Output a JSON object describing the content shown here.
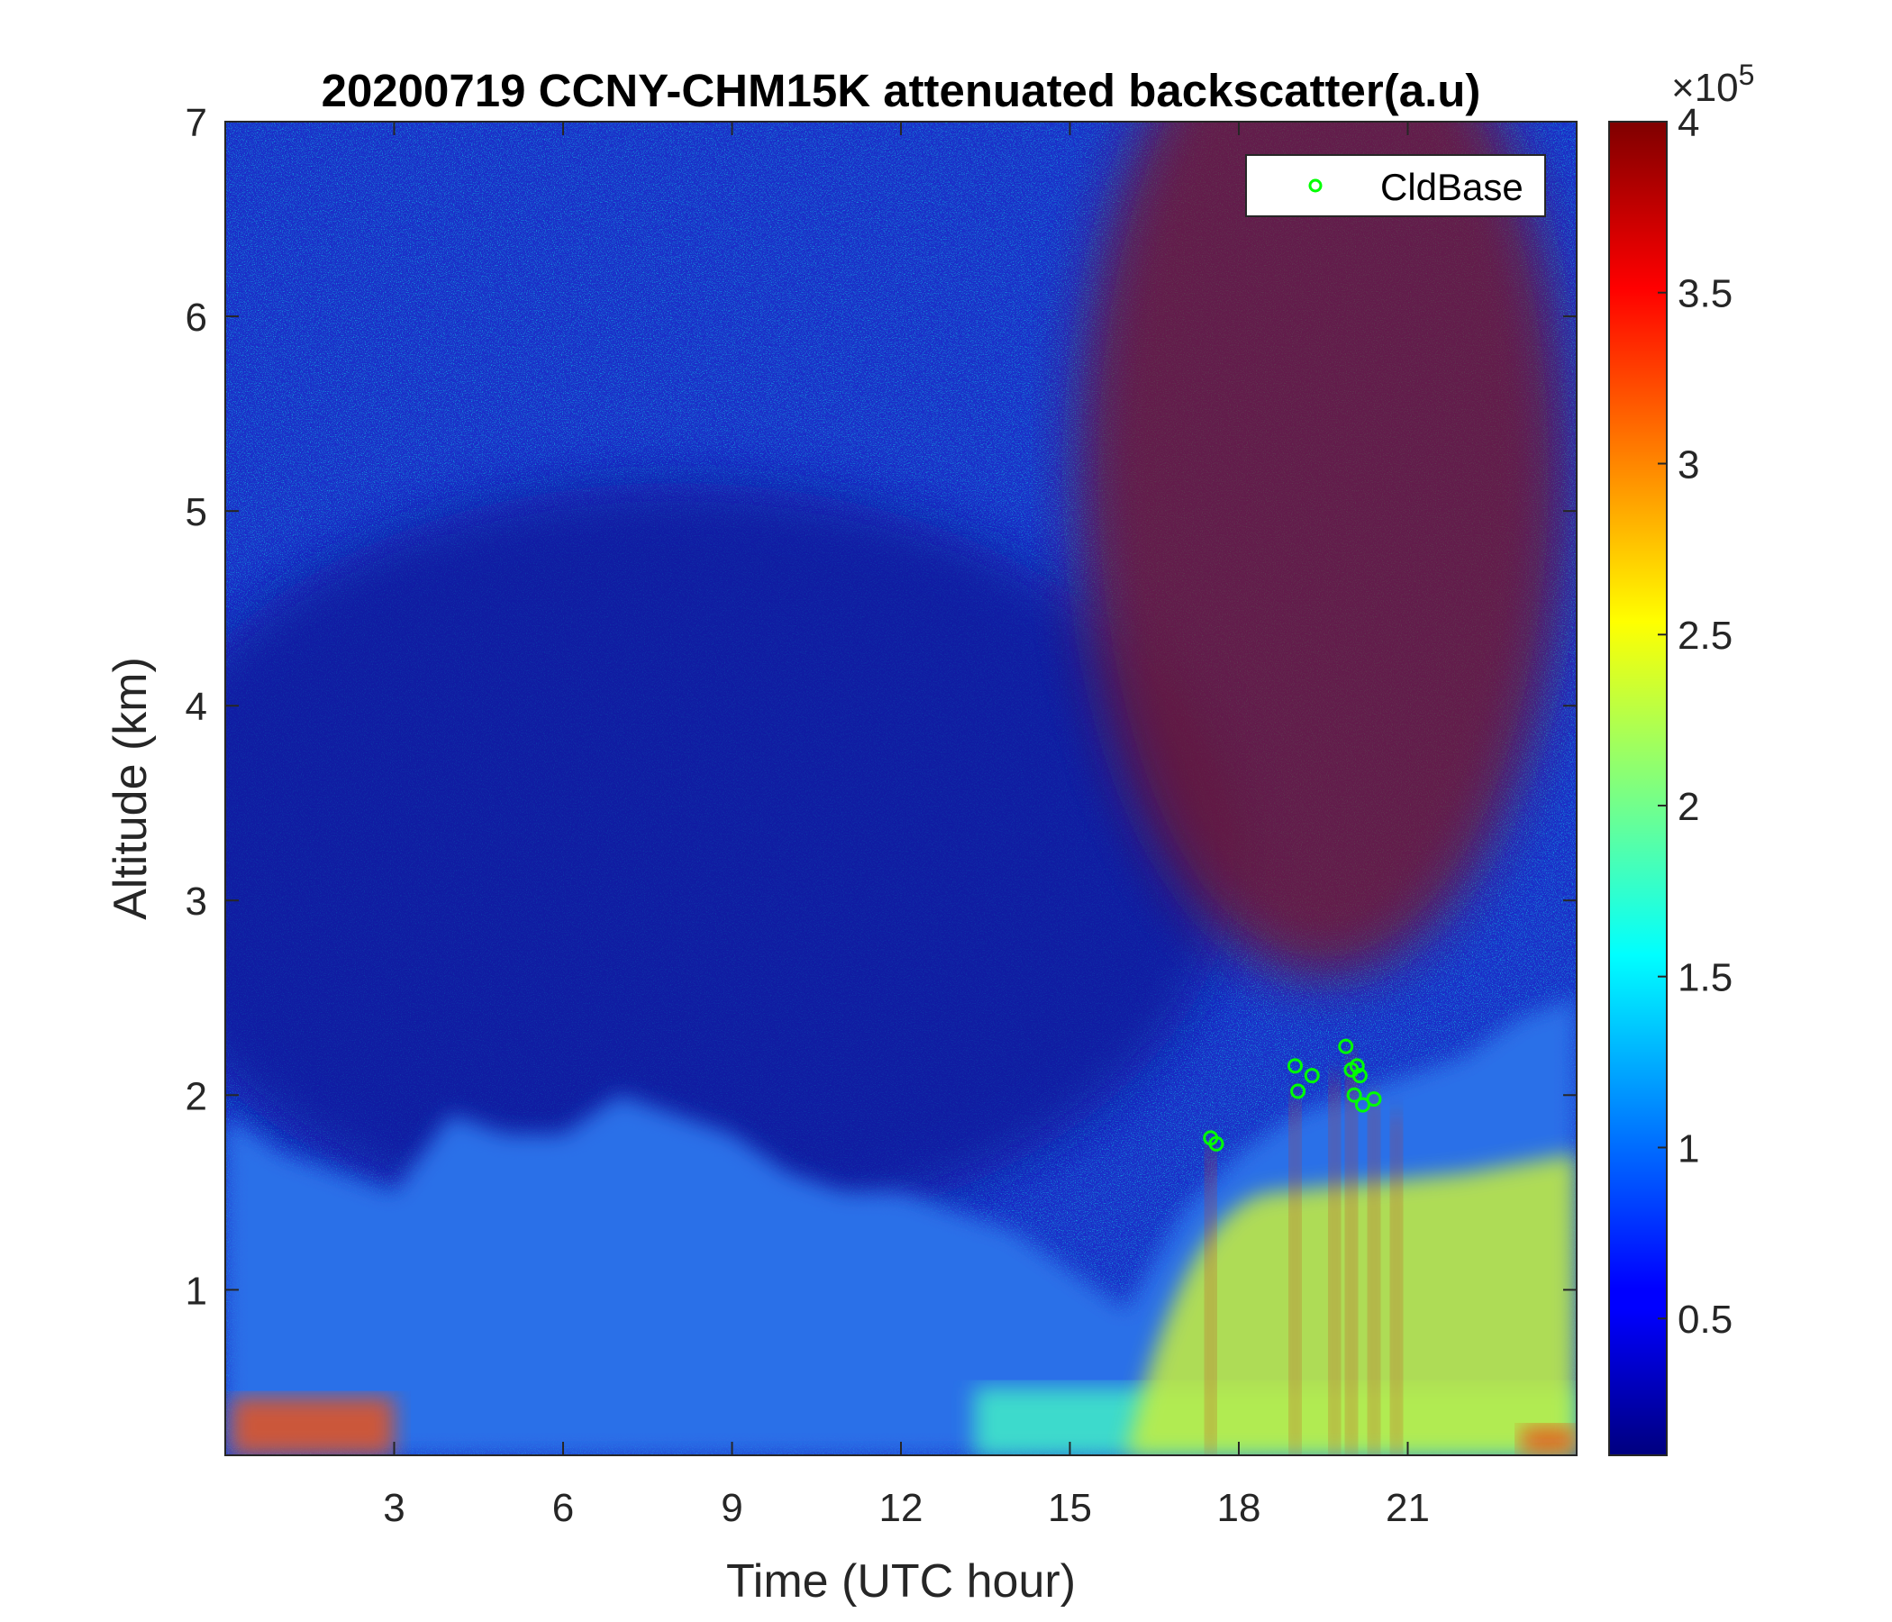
{
  "chart_data": {
    "type": "heatmap",
    "title": "20200719 CCNY-CHM15K attenuated backscatter(a.u)",
    "xlabel": "Time (UTC hour)",
    "ylabel": "Altitude (km)",
    "xlim": [
      0,
      24
    ],
    "ylim": [
      0.15,
      7
    ],
    "xticks": [
      3,
      6,
      9,
      12,
      15,
      18,
      21
    ],
    "xtick_labels": [
      "3",
      "6",
      "9",
      "12",
      "15",
      "18",
      "21"
    ],
    "yticks": [
      1,
      2,
      3,
      4,
      5,
      6,
      7
    ],
    "ytick_labels": [
      "1",
      "2",
      "3",
      "4",
      "5",
      "6",
      "7"
    ],
    "colorbar": {
      "colormap": "jet",
      "clim": [
        0.1,
        4
      ],
      "ticks": [
        0.5,
        1,
        1.5,
        2,
        2.5,
        3,
        3.5,
        4
      ],
      "tick_labels": [
        "0.5",
        "1",
        "1.5",
        "2",
        "2.5",
        "3",
        "3.5",
        "4"
      ],
      "exponent_label": "×10",
      "exponent_power": "5"
    },
    "boundary_layer_top_km": {
      "time_h": [
        0,
        1,
        2,
        3,
        4,
        5,
        6,
        7,
        8,
        9,
        10,
        11,
        12,
        13,
        14,
        15,
        16,
        17,
        18,
        19,
        20,
        21,
        22,
        23,
        24
      ],
      "height_km": [
        1.9,
        1.7,
        1.6,
        1.5,
        1.9,
        1.8,
        1.8,
        2.0,
        1.9,
        1.8,
        1.6,
        1.5,
        1.5,
        1.4,
        1.3,
        1.1,
        0.9,
        1.4,
        1.7,
        1.9,
        2.0,
        2.1,
        2.2,
        2.4,
        2.5
      ]
    },
    "series": [
      {
        "name": "CldBase",
        "type": "scatter",
        "marker": "circle",
        "color": "#00ff00",
        "x": [
          17.5,
          17.6,
          19.0,
          19.05,
          19.3,
          19.9,
          20.0,
          20.05,
          20.1,
          20.15,
          20.2,
          20.4
        ],
        "y": [
          1.78,
          1.75,
          2.15,
          2.02,
          2.1,
          2.25,
          2.13,
          2.0,
          2.15,
          2.1,
          1.95,
          1.98
        ]
      }
    ],
    "legend": {
      "position": "top-right",
      "entries": [
        "CldBase"
      ]
    }
  }
}
